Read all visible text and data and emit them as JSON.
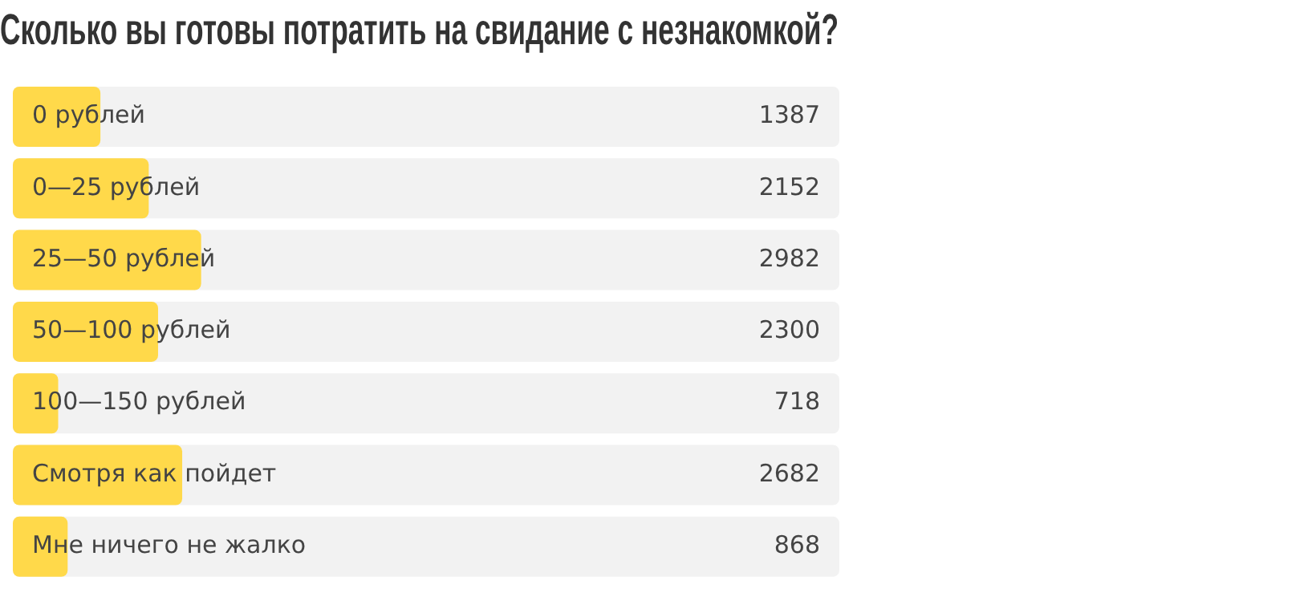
{
  "chart_data": {
    "type": "bar",
    "orientation": "horizontal",
    "title": "Сколько вы готовы потратить на свидание с незнакомкой?",
    "categories": [
      "0 рублей",
      "0—25 рублей",
      "25—50 рублей",
      "50—100 рублей",
      "100—150 рублей",
      "Смотря как пойдет",
      "Мне ничего не жалко"
    ],
    "values": [
      1387,
      2152,
      2982,
      2300,
      718,
      2682,
      868
    ],
    "color": "#ffd94a",
    "xlim": [
      0,
      13089
    ],
    "data_labels": true,
    "tick_labels": "y",
    "grid": false,
    "legend": false
  }
}
